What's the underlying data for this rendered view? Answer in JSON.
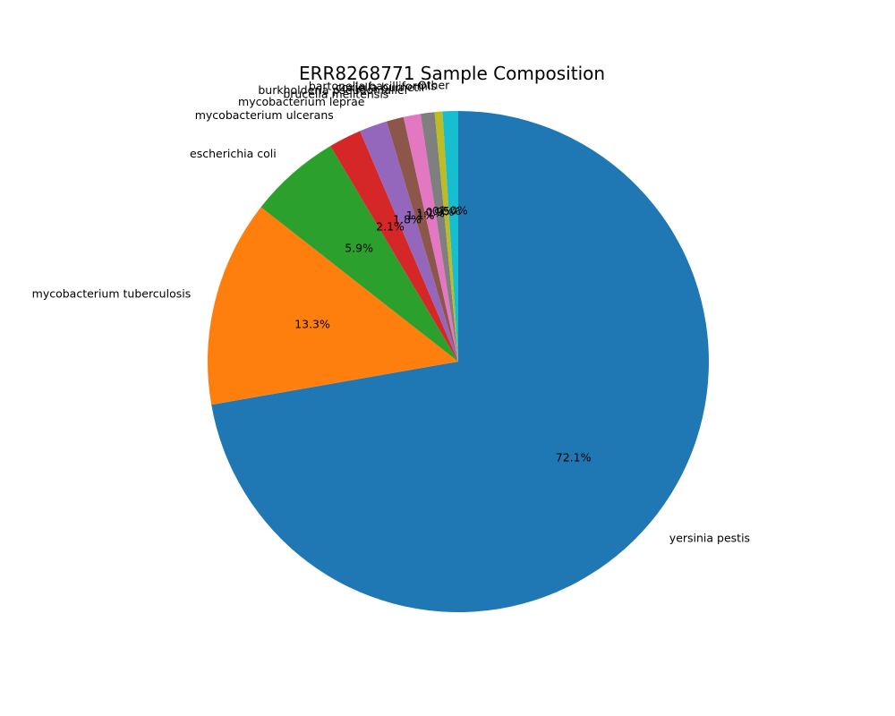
{
  "chart_data": {
    "type": "pie",
    "title": "ERR8268771 Sample Composition",
    "start_angle_deg": 90,
    "direction": "clockwise",
    "slices": [
      {
        "label": "yersinia pestis",
        "value": 72.1,
        "pct_label": "72.1%",
        "color": "#1f77b4"
      },
      {
        "label": "mycobacterium tuberculosis",
        "value": 13.3,
        "pct_label": "13.3%",
        "color": "#ff7f0e"
      },
      {
        "label": "escherichia coli",
        "value": 5.9,
        "pct_label": "5.9%",
        "color": "#2ca02c"
      },
      {
        "label": "mycobacterium ulcerans",
        "value": 2.1,
        "pct_label": "2.1%",
        "color": "#d62728"
      },
      {
        "label": "mycobacterium leprae",
        "value": 1.8,
        "pct_label": "1.8%",
        "color": "#9467bd"
      },
      {
        "label": "brucella melitensis",
        "value": 1.1,
        "pct_label": "1.1%",
        "color": "#8c564b"
      },
      {
        "label": "burkholderia pseudomallei",
        "value": 1.1,
        "pct_label": "1.1%",
        "color": "#e377c2"
      },
      {
        "label": "coxiella burnetii",
        "value": 0.9,
        "pct_label": "0.9%",
        "color": "#7f7f7f"
      },
      {
        "label": "bartonella bacilliformis",
        "value": 0.5,
        "pct_label": "0.5%",
        "color": "#bcbd22"
      },
      {
        "label": "Other",
        "value": 1.0,
        "pct_label": "1.0%",
        "color": "#17becf"
      }
    ]
  }
}
